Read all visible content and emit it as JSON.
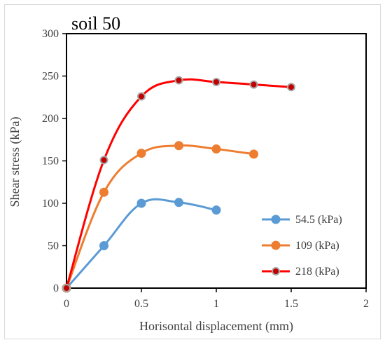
{
  "chart_data": {
    "type": "line",
    "title": "soil 50",
    "xlabel": "Horisontal displacement (mm)",
    "ylabel": "Shear stress (kPa)",
    "xlim": [
      0,
      2
    ],
    "ylim": [
      0,
      300
    ],
    "x_ticks": [
      0,
      0.5,
      1,
      1.5,
      2
    ],
    "x_tick_labels": [
      "0",
      "0.5",
      "1",
      "1.5",
      "2"
    ],
    "y_ticks": [
      0,
      50,
      100,
      150,
      200,
      250,
      300
    ],
    "y_tick_labels": [
      "0",
      "50",
      "100",
      "150",
      "200",
      "250",
      "300"
    ],
    "grid": false,
    "smooth": true,
    "legend_position": "bottom-right",
    "series": [
      {
        "name": "54.5 (kPa)",
        "color": "#5b9bd5",
        "marker_fill": "#5b9bd5",
        "x": [
          0,
          0.25,
          0.5,
          0.75,
          1.0
        ],
        "y": [
          0,
          50,
          100,
          101,
          92
        ]
      },
      {
        "name": "109 (kPa)",
        "color": "#ed7d31",
        "marker_fill": "#ed7d31",
        "x": [
          0,
          0.25,
          0.5,
          0.75,
          1.0,
          1.25
        ],
        "y": [
          0,
          113,
          159,
          168,
          164,
          158
        ]
      },
      {
        "name": "218 (kPa)",
        "color": "#ff0000",
        "marker_fill": "#c00000",
        "x": [
          0,
          0.25,
          0.5,
          0.75,
          1.0,
          1.25,
          1.5
        ],
        "y": [
          0,
          151,
          226,
          245,
          243,
          240,
          237
        ]
      }
    ]
  }
}
